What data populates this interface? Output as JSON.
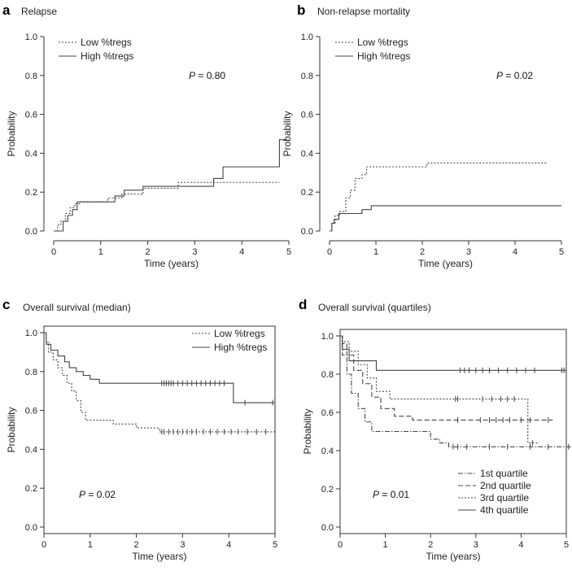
{
  "chart_data": [
    {
      "id": "a",
      "type": "line",
      "letter": "a",
      "title": "Relapse",
      "xlabel": "Time (years)",
      "ylabel": "Probability",
      "xlim": [
        0,
        5
      ],
      "ylim": [
        0,
        1
      ],
      "xticks": [
        "0",
        "1",
        "2",
        "3",
        "4",
        "5"
      ],
      "yticks": [
        "0.0",
        "0.2",
        "0.4",
        "0.6",
        "0.8",
        "1.0"
      ],
      "legend_position": "top-left",
      "pvalue": {
        "prefix": "P",
        "text": " = 0.80"
      },
      "series": [
        {
          "name": "Low %tregs",
          "style": "dotted",
          "x": [
            0,
            0.08,
            0.15,
            0.25,
            0.35,
            0.45,
            0.55,
            0.9,
            1.15,
            1.45,
            1.9,
            2.65,
            4.8
          ],
          "y": [
            0,
            0.03,
            0.05,
            0.09,
            0.12,
            0.14,
            0.15,
            0.15,
            0.17,
            0.19,
            0.22,
            0.25,
            0.25
          ]
        },
        {
          "name": "High %tregs",
          "style": "solid",
          "x": [
            0,
            0.2,
            0.3,
            0.4,
            0.5,
            1.3,
            1.5,
            1.9,
            2.5,
            3.4,
            3.6,
            4.2,
            4.8,
            4.95
          ],
          "y": [
            0,
            0.05,
            0.08,
            0.11,
            0.15,
            0.18,
            0.21,
            0.23,
            0.23,
            0.27,
            0.33,
            0.33,
            0.47,
            0.47
          ]
        }
      ]
    },
    {
      "id": "b",
      "type": "line",
      "letter": "b",
      "title": "Non-relapse mortality",
      "xlabel": "Time (years)",
      "ylabel": "Probability",
      "xlim": [
        0,
        5
      ],
      "ylim": [
        0,
        1
      ],
      "xticks": [
        "0",
        "1",
        "2",
        "3",
        "4",
        "5"
      ],
      "yticks": [
        "0.0",
        "0.2",
        "0.4",
        "0.6",
        "0.8",
        "1.0"
      ],
      "legend_position": "top-left",
      "pvalue": {
        "prefix": "P",
        "text": " = 0.02"
      },
      "series": [
        {
          "name": "Low %tregs",
          "style": "dotted",
          "x": [
            0,
            0.05,
            0.12,
            0.22,
            0.35,
            0.45,
            0.55,
            0.7,
            0.8,
            2.0,
            2.1,
            4.7
          ],
          "y": [
            0,
            0.04,
            0.08,
            0.1,
            0.17,
            0.21,
            0.27,
            0.29,
            0.33,
            0.33,
            0.35,
            0.35
          ]
        },
        {
          "name": "High %tregs",
          "style": "solid",
          "x": [
            0,
            0.05,
            0.1,
            0.2,
            0.7,
            0.9,
            5.0
          ],
          "y": [
            0,
            0.04,
            0.06,
            0.09,
            0.11,
            0.13,
            0.13
          ]
        }
      ]
    },
    {
      "id": "c",
      "type": "line",
      "letter": "c",
      "title": "Overall survival (median)",
      "xlabel": "Time (years)",
      "ylabel": "Probability",
      "xlim": [
        0,
        5
      ],
      "ylim": [
        0,
        1
      ],
      "xticks": [
        "0",
        "1",
        "2",
        "3",
        "4",
        "5"
      ],
      "yticks": [
        "0.0",
        "0.2",
        "0.4",
        "0.6",
        "0.8",
        "1.0"
      ],
      "legend_position": "top-right",
      "pvalue": {
        "prefix": "P",
        "text": " = 0.02"
      },
      "series": [
        {
          "name": "Low %tregs",
          "style": "dotted",
          "x": [
            0,
            0.05,
            0.1,
            0.2,
            0.3,
            0.4,
            0.5,
            0.6,
            0.7,
            0.8,
            0.9,
            1.5,
            2.0,
            2.5,
            5.0
          ],
          "y": [
            1.0,
            0.95,
            0.9,
            0.86,
            0.82,
            0.78,
            0.74,
            0.7,
            0.65,
            0.59,
            0.55,
            0.53,
            0.51,
            0.49,
            0.49
          ],
          "censor_x": [
            2.55,
            2.6,
            2.7,
            2.8,
            2.9,
            3.0,
            3.1,
            3.2,
            3.3,
            3.45,
            3.6,
            3.75,
            3.9,
            4.05,
            4.2,
            4.4,
            4.6,
            4.8
          ]
        },
        {
          "name": "High %tregs",
          "style": "solid",
          "x": [
            0,
            0.05,
            0.15,
            0.3,
            0.45,
            0.55,
            0.7,
            0.85,
            1.0,
            1.2,
            4.1,
            4.3,
            5.0
          ],
          "y": [
            1.0,
            0.94,
            0.91,
            0.88,
            0.85,
            0.82,
            0.8,
            0.78,
            0.76,
            0.74,
            0.64,
            0.64,
            0.64
          ],
          "censor_x": [
            2.55,
            2.6,
            2.65,
            2.7,
            2.75,
            2.8,
            2.9,
            3.0,
            3.1,
            3.2,
            3.3,
            3.4,
            3.5,
            3.6,
            3.7,
            3.8,
            3.9,
            4.35,
            4.95
          ]
        }
      ]
    },
    {
      "id": "d",
      "type": "line",
      "letter": "d",
      "title": "Overall survival (quartiles)",
      "xlabel": "Time (years)",
      "ylabel": "Probability",
      "xlim": [
        0,
        5
      ],
      "ylim": [
        0,
        1
      ],
      "xticks": [
        "0",
        "1",
        "2",
        "3",
        "4",
        "5"
      ],
      "yticks": [
        "0.0",
        "0.2",
        "0.4",
        "0.6",
        "0.8",
        "1.0"
      ],
      "legend_position": "bottom-right",
      "pvalue": {
        "prefix": "P",
        "text": " = 0.01"
      },
      "series": [
        {
          "name": "1st quartile",
          "style": "dashdot",
          "x": [
            0,
            0.05,
            0.15,
            0.25,
            0.4,
            0.55,
            0.7,
            1.5,
            2.0,
            2.2,
            2.4,
            5.1
          ],
          "y": [
            1.0,
            0.9,
            0.8,
            0.7,
            0.62,
            0.55,
            0.5,
            0.5,
            0.46,
            0.44,
            0.42,
            0.42
          ],
          "censor_x": [
            2.5,
            2.6,
            2.8,
            3.3,
            3.7,
            4.2,
            4.6,
            5.05
          ]
        },
        {
          "name": "2nd quartile",
          "style": "dashed",
          "x": [
            0,
            0.05,
            0.15,
            0.3,
            0.5,
            0.7,
            0.9,
            1.2,
            1.6,
            4.7
          ],
          "y": [
            1.0,
            0.96,
            0.9,
            0.82,
            0.75,
            0.68,
            0.62,
            0.58,
            0.56,
            0.56
          ],
          "censor_x": [
            2.6,
            3.1,
            3.3,
            3.45,
            3.6,
            3.75,
            4.0,
            4.2,
            4.6
          ]
        },
        {
          "name": "3rd quartile",
          "style": "dotted",
          "x": [
            0,
            0.05,
            0.2,
            0.4,
            0.6,
            0.8,
            1.1,
            4.1,
            4.15,
            4.4
          ],
          "y": [
            1.0,
            0.97,
            0.92,
            0.85,
            0.78,
            0.71,
            0.67,
            0.67,
            0.44,
            0.44
          ],
          "censor_x": [
            2.55,
            2.6,
            3.15,
            3.35,
            3.55,
            3.7,
            3.85,
            4.25
          ]
        },
        {
          "name": "4th quartile",
          "style": "solid",
          "x": [
            0,
            0.05,
            0.2,
            0.8,
            5.0
          ],
          "y": [
            1.0,
            0.93,
            0.87,
            0.82,
            0.82
          ],
          "censor_x": [
            2.65,
            2.75,
            2.85,
            3.0,
            3.15,
            3.3,
            3.5,
            3.7,
            3.9,
            4.1,
            4.3,
            4.9,
            4.95
          ]
        }
      ]
    }
  ]
}
